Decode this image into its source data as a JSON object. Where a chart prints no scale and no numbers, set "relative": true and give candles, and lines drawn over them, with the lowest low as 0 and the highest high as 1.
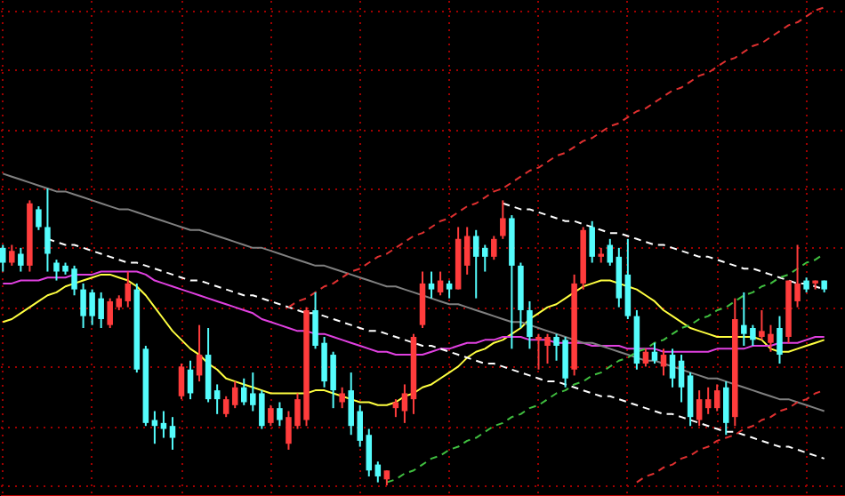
{
  "chart_data": {
    "type": "candlestick",
    "relative": true,
    "tick_labels": false,
    "grid": true,
    "categories": [
      null,
      null,
      null,
      null,
      null,
      null,
      null,
      null,
      null,
      null,
      null,
      null,
      null,
      null,
      null,
      null,
      null,
      null,
      null,
      null,
      null,
      null,
      null,
      null,
      null,
      null,
      null,
      null,
      null,
      null,
      null,
      null,
      null,
      null,
      null,
      null,
      null,
      null,
      null,
      null,
      null,
      null,
      null,
      null,
      null,
      null,
      null,
      null,
      null,
      null,
      null,
      null,
      null,
      null,
      null,
      null,
      null,
      null,
      null,
      null,
      null,
      null,
      null,
      null,
      null,
      null,
      null,
      null,
      null,
      null,
      null,
      null,
      null,
      null,
      null,
      null,
      null,
      null,
      null,
      null,
      null,
      null,
      null,
      null,
      null,
      null,
      null,
      null,
      null,
      null,
      null,
      null,
      null
    ],
    "colors": [
      "#54fcfc",
      "#ff3c3c",
      "#54fcfc",
      "#ff3c3c",
      "#54fcfc",
      "#54fcfc",
      "#54fcfc",
      "#54fcfc",
      "#54fcfc",
      "#54fcfc",
      "#54fcfc",
      "#54fcfc",
      "#ff3c3c",
      "#ff3c3c",
      "#ff3c3c",
      "#54fcfc",
      "#54fcfc",
      "#54fcfc",
      "#54fcfc",
      "#54fcfc",
      "#ff3c3c",
      "#54fcfc",
      "#ff3c3c",
      "#54fcfc",
      "#54fcfc",
      "#ff3c3c",
      "#ff3c3c",
      "#54fcfc",
      "#54fcfc",
      "#54fcfc",
      "#ff3c3c",
      "#54fcfc",
      "#ff3c3c",
      "#ff3c3c",
      "#ff3c3c",
      "#54fcfc",
      "#54fcfc",
      "#54fcfc",
      "#ff3c3c",
      "#54fcfc",
      "#54fcfc",
      "#54fcfc",
      "#54fcfc",
      "#ff3c3c",
      "#ff3c3c",
      "#ff3c3c",
      "#ff3c3c",
      "#ff3c3c",
      "#54fcfc",
      "#ff3c3c",
      "#54fcfc",
      "#ff3c3c",
      "#ff3c3c",
      "#54fcfc",
      "#54fcfc",
      "#ff3c3c",
      "#ff3c3c",
      "#54fcfc",
      "#54fcfc",
      "#54fcfc",
      "#ff3c3c",
      "#ff3c3c",
      "#54fcfc",
      "#54fcfc",
      "#ff3c3c",
      "#ff3c3c",
      "#54fcfc",
      "#ff3c3c",
      "#54fcfc",
      "#54fcfc",
      "#54fcfc",
      "#54fcfc",
      "#ff3c3c",
      "#54fcfc",
      "#ff3c3c",
      "#54fcfc",
      "#54fcfc",
      "#54fcfc",
      "#ff3c3c",
      "#ff3c3c",
      "#ff3c3c",
      "#54fcfc",
      "#ff3c3c",
      "#54fcfc",
      "#54fcfc",
      "#ff3c3c",
      "#ff3c3c",
      "#54fcfc",
      "#ff3c3c",
      "#ff3c3c",
      "#54fcfc",
      "#ff3c3c",
      "#54fcfc"
    ],
    "ohlc": [
      [
        0.8,
        0.81,
        0.72,
        0.75
      ],
      [
        0.75,
        0.81,
        0.74,
        0.79
      ],
      [
        0.78,
        0.8,
        0.72,
        0.74
      ],
      [
        0.74,
        0.96,
        0.72,
        0.95
      ],
      [
        0.93,
        0.94,
        0.86,
        0.87
      ],
      [
        0.87,
        1.0,
        0.72,
        0.78
      ],
      [
        0.75,
        0.76,
        0.69,
        0.72
      ],
      [
        0.74,
        0.75,
        0.71,
        0.72
      ],
      [
        0.73,
        0.74,
        0.64,
        0.66
      ],
      [
        0.66,
        0.68,
        0.53,
        0.57
      ],
      [
        0.65,
        0.66,
        0.54,
        0.57
      ],
      [
        0.63,
        0.65,
        0.53,
        0.56
      ],
      [
        0.54,
        0.63,
        0.53,
        0.62
      ],
      [
        0.6,
        0.64,
        0.59,
        0.63
      ],
      [
        0.62,
        0.72,
        0.6,
        0.68
      ],
      [
        0.66,
        0.68,
        0.38,
        0.39
      ],
      [
        0.46,
        0.47,
        0.2,
        0.21
      ],
      [
        0.22,
        0.25,
        0.14,
        0.2
      ],
      [
        0.21,
        0.25,
        0.16,
        0.19
      ],
      [
        0.2,
        0.23,
        0.12,
        0.16
      ],
      [
        0.3,
        0.41,
        0.29,
        0.4
      ],
      [
        0.39,
        0.42,
        0.29,
        0.31
      ],
      [
        0.37,
        0.54,
        0.35,
        0.44
      ],
      [
        0.44,
        0.53,
        0.28,
        0.29
      ],
      [
        0.32,
        0.34,
        0.24,
        0.29
      ],
      [
        0.24,
        0.3,
        0.23,
        0.29
      ],
      [
        0.27,
        0.35,
        0.26,
        0.33
      ],
      [
        0.33,
        0.36,
        0.27,
        0.28
      ],
      [
        0.31,
        0.38,
        0.25,
        0.27
      ],
      [
        0.31,
        0.32,
        0.19,
        0.2
      ],
      [
        0.21,
        0.27,
        0.2,
        0.26
      ],
      [
        0.26,
        0.28,
        0.2,
        0.22
      ],
      [
        0.14,
        0.25,
        0.12,
        0.23
      ],
      [
        0.2,
        0.31,
        0.19,
        0.29
      ],
      [
        0.22,
        0.6,
        0.2,
        0.59
      ],
      [
        0.59,
        0.65,
        0.46,
        0.47
      ],
      [
        0.48,
        0.5,
        0.33,
        0.35
      ],
      [
        0.44,
        0.45,
        0.26,
        0.32
      ],
      [
        0.28,
        0.33,
        0.26,
        0.31
      ],
      [
        0.32,
        0.38,
        0.17,
        0.2
      ],
      [
        0.25,
        0.27,
        0.13,
        0.15
      ],
      [
        0.17,
        0.19,
        0.03,
        0.05
      ],
      [
        0.07,
        0.08,
        0.01,
        0.03
      ],
      [
        0.02,
        0.05,
        0.0,
        0.05
      ],
      [
        0.26,
        0.29,
        0.23,
        0.28
      ],
      [
        0.25,
        0.34,
        0.21,
        0.31
      ],
      [
        0.29,
        0.51,
        0.24,
        0.5
      ],
      [
        0.54,
        0.72,
        0.53,
        0.68
      ],
      [
        0.68,
        0.72,
        0.63,
        0.66
      ],
      [
        0.65,
        0.72,
        0.64,
        0.69
      ],
      [
        0.68,
        0.69,
        0.63,
        0.66
      ],
      [
        0.66,
        0.87,
        0.66,
        0.83
      ],
      [
        0.74,
        0.87,
        0.71,
        0.84
      ],
      [
        0.84,
        0.86,
        0.63,
        0.77
      ],
      [
        0.8,
        0.81,
        0.72,
        0.77
      ],
      [
        0.77,
        0.84,
        0.76,
        0.83
      ],
      [
        0.84,
        0.96,
        0.83,
        0.9
      ],
      [
        0.9,
        0.91,
        0.46,
        0.74
      ],
      [
        0.74,
        0.75,
        0.53,
        0.59
      ],
      [
        0.59,
        0.62,
        0.46,
        0.5
      ],
      [
        0.49,
        0.51,
        0.39,
        0.5
      ],
      [
        0.47,
        0.51,
        0.41,
        0.5
      ],
      [
        0.5,
        0.51,
        0.42,
        0.47
      ],
      [
        0.49,
        0.5,
        0.33,
        0.36
      ],
      [
        0.39,
        0.71,
        0.37,
        0.68
      ],
      [
        0.68,
        0.87,
        0.66,
        0.86
      ],
      [
        0.87,
        0.89,
        0.75,
        0.77
      ],
      [
        0.77,
        0.8,
        0.75,
        0.78
      ],
      [
        0.81,
        0.83,
        0.74,
        0.75
      ],
      [
        0.77,
        0.8,
        0.6,
        0.63
      ],
      [
        0.71,
        0.83,
        0.56,
        0.57
      ],
      [
        0.57,
        0.59,
        0.39,
        0.41
      ],
      [
        0.41,
        0.46,
        0.4,
        0.45
      ],
      [
        0.45,
        0.48,
        0.41,
        0.42
      ],
      [
        0.4,
        0.46,
        0.37,
        0.44
      ],
      [
        0.44,
        0.46,
        0.33,
        0.36
      ],
      [
        0.42,
        0.44,
        0.28,
        0.33
      ],
      [
        0.37,
        0.38,
        0.2,
        0.23
      ],
      [
        0.22,
        0.32,
        0.2,
        0.29
      ],
      [
        0.26,
        0.33,
        0.24,
        0.29
      ],
      [
        0.26,
        0.34,
        0.25,
        0.32
      ],
      [
        0.33,
        0.35,
        0.17,
        0.21
      ],
      [
        0.23,
        0.63,
        0.2,
        0.56
      ],
      [
        0.54,
        0.65,
        0.47,
        0.51
      ],
      [
        0.53,
        0.54,
        0.47,
        0.49
      ],
      [
        0.5,
        0.59,
        0.49,
        0.52
      ],
      [
        0.48,
        0.54,
        0.45,
        0.51
      ],
      [
        0.53,
        0.57,
        0.41,
        0.44
      ],
      [
        0.5,
        0.69,
        0.48,
        0.69
      ],
      [
        0.62,
        0.81,
        0.6,
        0.68
      ],
      [
        0.69,
        0.7,
        0.65,
        0.66
      ],
      [
        0.68,
        0.69,
        0.66,
        0.69
      ],
      [
        0.69,
        0.69,
        0.65,
        0.66
      ]
    ],
    "series": [
      {
        "type": "line",
        "color": "#ffff40",
        "line_style": "solid",
        "values": [
          0.55,
          0.56,
          0.58,
          0.6,
          0.62,
          0.64,
          0.65,
          0.67,
          0.68,
          0.69,
          0.7,
          0.71,
          0.71,
          0.7,
          0.69,
          0.67,
          0.64,
          0.6,
          0.56,
          0.52,
          0.49,
          0.46,
          0.44,
          0.41,
          0.39,
          0.36,
          0.35,
          0.34,
          0.33,
          0.32,
          0.31,
          0.31,
          0.31,
          0.31,
          0.31,
          0.32,
          0.32,
          0.31,
          0.3,
          0.29,
          0.28,
          0.28,
          0.27,
          0.27,
          0.28,
          0.3,
          0.31,
          0.33,
          0.34,
          0.36,
          0.38,
          0.4,
          0.43,
          0.45,
          0.46,
          0.48,
          0.49,
          0.51,
          0.53,
          0.56,
          0.58,
          0.6,
          0.61,
          0.63,
          0.65,
          0.67,
          0.68,
          0.69,
          0.69,
          0.68,
          0.67,
          0.66,
          0.64,
          0.62,
          0.59,
          0.57,
          0.55,
          0.53,
          0.52,
          0.51,
          0.5,
          0.5,
          0.5,
          0.5,
          0.5,
          0.49,
          0.46,
          0.45,
          0.45,
          0.46,
          0.47,
          0.48,
          0.49
        ]
      },
      {
        "type": "line",
        "color": "#e040e0",
        "line_style": "solid",
        "values": [
          0.68,
          0.68,
          0.69,
          0.69,
          0.69,
          0.7,
          0.7,
          0.7,
          0.71,
          0.71,
          0.71,
          0.72,
          0.72,
          0.72,
          0.72,
          0.72,
          0.71,
          0.69,
          0.68,
          0.67,
          0.66,
          0.65,
          0.64,
          0.63,
          0.62,
          0.61,
          0.6,
          0.59,
          0.58,
          0.56,
          0.55,
          0.54,
          0.53,
          0.52,
          0.52,
          0.51,
          0.51,
          0.5,
          0.49,
          0.48,
          0.47,
          0.46,
          0.45,
          0.45,
          0.44,
          0.44,
          0.44,
          0.44,
          0.45,
          0.46,
          0.46,
          0.47,
          0.48,
          0.48,
          0.49,
          0.49,
          0.5,
          0.5,
          0.5,
          0.49,
          0.49,
          0.49,
          0.48,
          0.48,
          0.48,
          0.48,
          0.47,
          0.47,
          0.47,
          0.47,
          0.46,
          0.46,
          0.46,
          0.46,
          0.45,
          0.45,
          0.45,
          0.45,
          0.45,
          0.45,
          0.46,
          0.46,
          0.46,
          0.46,
          0.47,
          0.47,
          0.47,
          0.48,
          0.48,
          0.48,
          0.49,
          0.5,
          0.5
        ]
      },
      {
        "type": "line",
        "color": "#808080",
        "line_style": "solid",
        "values": [
          1.05,
          1.04,
          1.03,
          1.02,
          1.01,
          1.0,
          0.99,
          0.99,
          0.98,
          0.97,
          0.96,
          0.95,
          0.94,
          0.93,
          0.93,
          0.92,
          0.91,
          0.9,
          0.89,
          0.88,
          0.87,
          0.86,
          0.86,
          0.85,
          0.84,
          0.83,
          0.82,
          0.81,
          0.8,
          0.8,
          0.79,
          0.78,
          0.77,
          0.76,
          0.75,
          0.74,
          0.74,
          0.73,
          0.72,
          0.71,
          0.7,
          0.69,
          0.68,
          0.67,
          0.67,
          0.66,
          0.65,
          0.64,
          0.63,
          0.62,
          0.61,
          0.61,
          0.6,
          0.59,
          0.58,
          0.57,
          0.56,
          0.55,
          0.55,
          0.54,
          0.53,
          0.52,
          0.51,
          0.5,
          0.49,
          0.48,
          0.48,
          0.47,
          0.46,
          0.45,
          0.44,
          0.43,
          0.42,
          0.42,
          0.41,
          0.4,
          0.39,
          0.38,
          0.37,
          0.36,
          0.36,
          0.35,
          0.34,
          0.33,
          0.32,
          0.31,
          0.3,
          0.29,
          0.29,
          0.28,
          0.27,
          0.26,
          0.25
        ]
      },
      {
        "type": "line",
        "color": "#ffffff",
        "line_style": "dashed",
        "values": [
          null,
          null,
          null,
          null,
          null,
          0.83,
          0.82,
          0.81,
          0.81,
          0.8,
          0.79,
          0.78,
          0.77,
          0.76,
          0.75,
          0.75,
          0.74,
          0.73,
          0.72,
          0.71,
          0.7,
          0.69,
          0.69,
          0.68,
          0.67,
          0.66,
          0.65,
          0.64,
          0.64,
          0.63,
          0.62,
          0.61,
          0.6,
          0.59,
          0.58,
          0.58,
          0.57,
          0.56,
          0.55,
          0.54,
          0.53,
          0.52,
          0.52,
          0.51,
          0.5,
          0.49,
          0.48,
          0.47,
          0.47,
          0.46,
          0.45,
          0.44,
          0.43,
          0.42,
          0.41,
          0.41,
          0.4,
          0.39,
          0.38,
          0.37,
          0.36,
          0.35,
          0.35,
          0.34,
          0.33,
          0.32,
          0.31,
          0.3,
          0.3,
          0.29,
          0.28,
          0.27,
          0.26,
          0.25,
          0.24,
          0.24,
          0.23,
          0.22,
          0.21,
          0.2,
          0.19,
          0.18,
          0.18,
          0.17,
          0.16,
          0.15,
          0.14,
          0.13,
          0.13,
          0.12,
          0.11,
          0.1,
          0.09
        ]
      },
      {
        "type": "line",
        "color": "#ffffff",
        "line_style": "dashed",
        "values": [
          null,
          null,
          null,
          null,
          null,
          null,
          null,
          null,
          null,
          null,
          null,
          null,
          null,
          null,
          null,
          null,
          null,
          null,
          null,
          null,
          null,
          null,
          null,
          null,
          null,
          null,
          null,
          null,
          null,
          null,
          null,
          null,
          null,
          null,
          null,
          null,
          null,
          null,
          null,
          null,
          null,
          null,
          null,
          null,
          null,
          null,
          null,
          null,
          null,
          null,
          null,
          null,
          null,
          null,
          null,
          null,
          0.95,
          0.94,
          0.93,
          0.93,
          0.92,
          0.91,
          0.9,
          0.89,
          0.89,
          0.88,
          0.87,
          0.86,
          0.85,
          0.85,
          0.84,
          0.83,
          0.82,
          0.81,
          0.81,
          0.8,
          0.79,
          0.78,
          0.77,
          0.77,
          0.76,
          0.75,
          0.74,
          0.73,
          0.73,
          0.72,
          0.71,
          0.7,
          0.69,
          0.68,
          0.68,
          0.67,
          0.66
        ]
      },
      {
        "type": "line",
        "color": "#e03030",
        "line_style": "dashed",
        "values": [
          null,
          null,
          null,
          null,
          null,
          null,
          null,
          null,
          null,
          null,
          null,
          null,
          null,
          null,
          null,
          null,
          null,
          null,
          null,
          null,
          null,
          null,
          null,
          null,
          null,
          null,
          null,
          null,
          null,
          null,
          null,
          null,
          0.6,
          0.62,
          0.63,
          0.65,
          0.67,
          0.68,
          0.7,
          0.72,
          0.73,
          0.75,
          0.77,
          0.78,
          0.8,
          0.82,
          0.84,
          0.85,
          0.87,
          0.89,
          0.9,
          0.92,
          0.94,
          0.95,
          0.97,
          0.99,
          1.0,
          1.02,
          1.04,
          1.06,
          1.07,
          1.09,
          1.11,
          1.12,
          1.14,
          1.16,
          1.17,
          1.19,
          1.21,
          1.22,
          1.24,
          1.26,
          1.27,
          1.29,
          1.31,
          1.33,
          1.34,
          1.36,
          1.38,
          1.39,
          1.41,
          1.43,
          1.44,
          1.46,
          1.48,
          1.49,
          1.51,
          1.53,
          1.55,
          1.56,
          1.58,
          1.6,
          1.61
        ]
      },
      {
        "type": "line",
        "color": "#e03030",
        "line_style": "dashed",
        "values": [
          null,
          null,
          null,
          null,
          null,
          null,
          null,
          null,
          null,
          null,
          null,
          null,
          null,
          null,
          null,
          null,
          null,
          null,
          null,
          null,
          null,
          null,
          null,
          null,
          null,
          null,
          null,
          null,
          null,
          null,
          null,
          null,
          null,
          null,
          null,
          null,
          null,
          null,
          null,
          null,
          null,
          null,
          null,
          null,
          null,
          null,
          null,
          null,
          null,
          null,
          null,
          null,
          null,
          null,
          null,
          null,
          null,
          null,
          null,
          null,
          null,
          null,
          null,
          null,
          null,
          null,
          null,
          null,
          null,
          null,
          null,
          0.01,
          0.03,
          0.04,
          0.06,
          0.07,
          0.09,
          0.1,
          0.12,
          0.13,
          0.15,
          0.16,
          0.17,
          0.19,
          0.2,
          0.22,
          0.23,
          0.25,
          0.26,
          0.28,
          0.29,
          0.31,
          0.32
        ]
      },
      {
        "type": "line",
        "color": "#40c040",
        "line_style": "dashed",
        "values": [
          null,
          null,
          null,
          null,
          null,
          null,
          null,
          null,
          null,
          null,
          null,
          null,
          null,
          null,
          null,
          null,
          null,
          null,
          null,
          null,
          null,
          null,
          null,
          null,
          null,
          null,
          null,
          null,
          null,
          null,
          null,
          null,
          null,
          null,
          null,
          null,
          null,
          null,
          null,
          null,
          null,
          null,
          null,
          0.01,
          0.02,
          0.04,
          0.05,
          0.07,
          0.09,
          0.1,
          0.12,
          0.13,
          0.15,
          0.16,
          0.18,
          0.2,
          0.21,
          0.23,
          0.24,
          0.26,
          0.27,
          0.29,
          0.31,
          0.32,
          0.34,
          0.35,
          0.37,
          0.38,
          0.4,
          0.42,
          0.43,
          0.45,
          0.46,
          0.48,
          0.49,
          0.51,
          0.53,
          0.54,
          0.56,
          0.57,
          0.59,
          0.6,
          0.62,
          0.64,
          0.65,
          0.67,
          0.68,
          0.7,
          0.71,
          0.73,
          0.75,
          0.76,
          0.78
        ]
      }
    ]
  }
}
